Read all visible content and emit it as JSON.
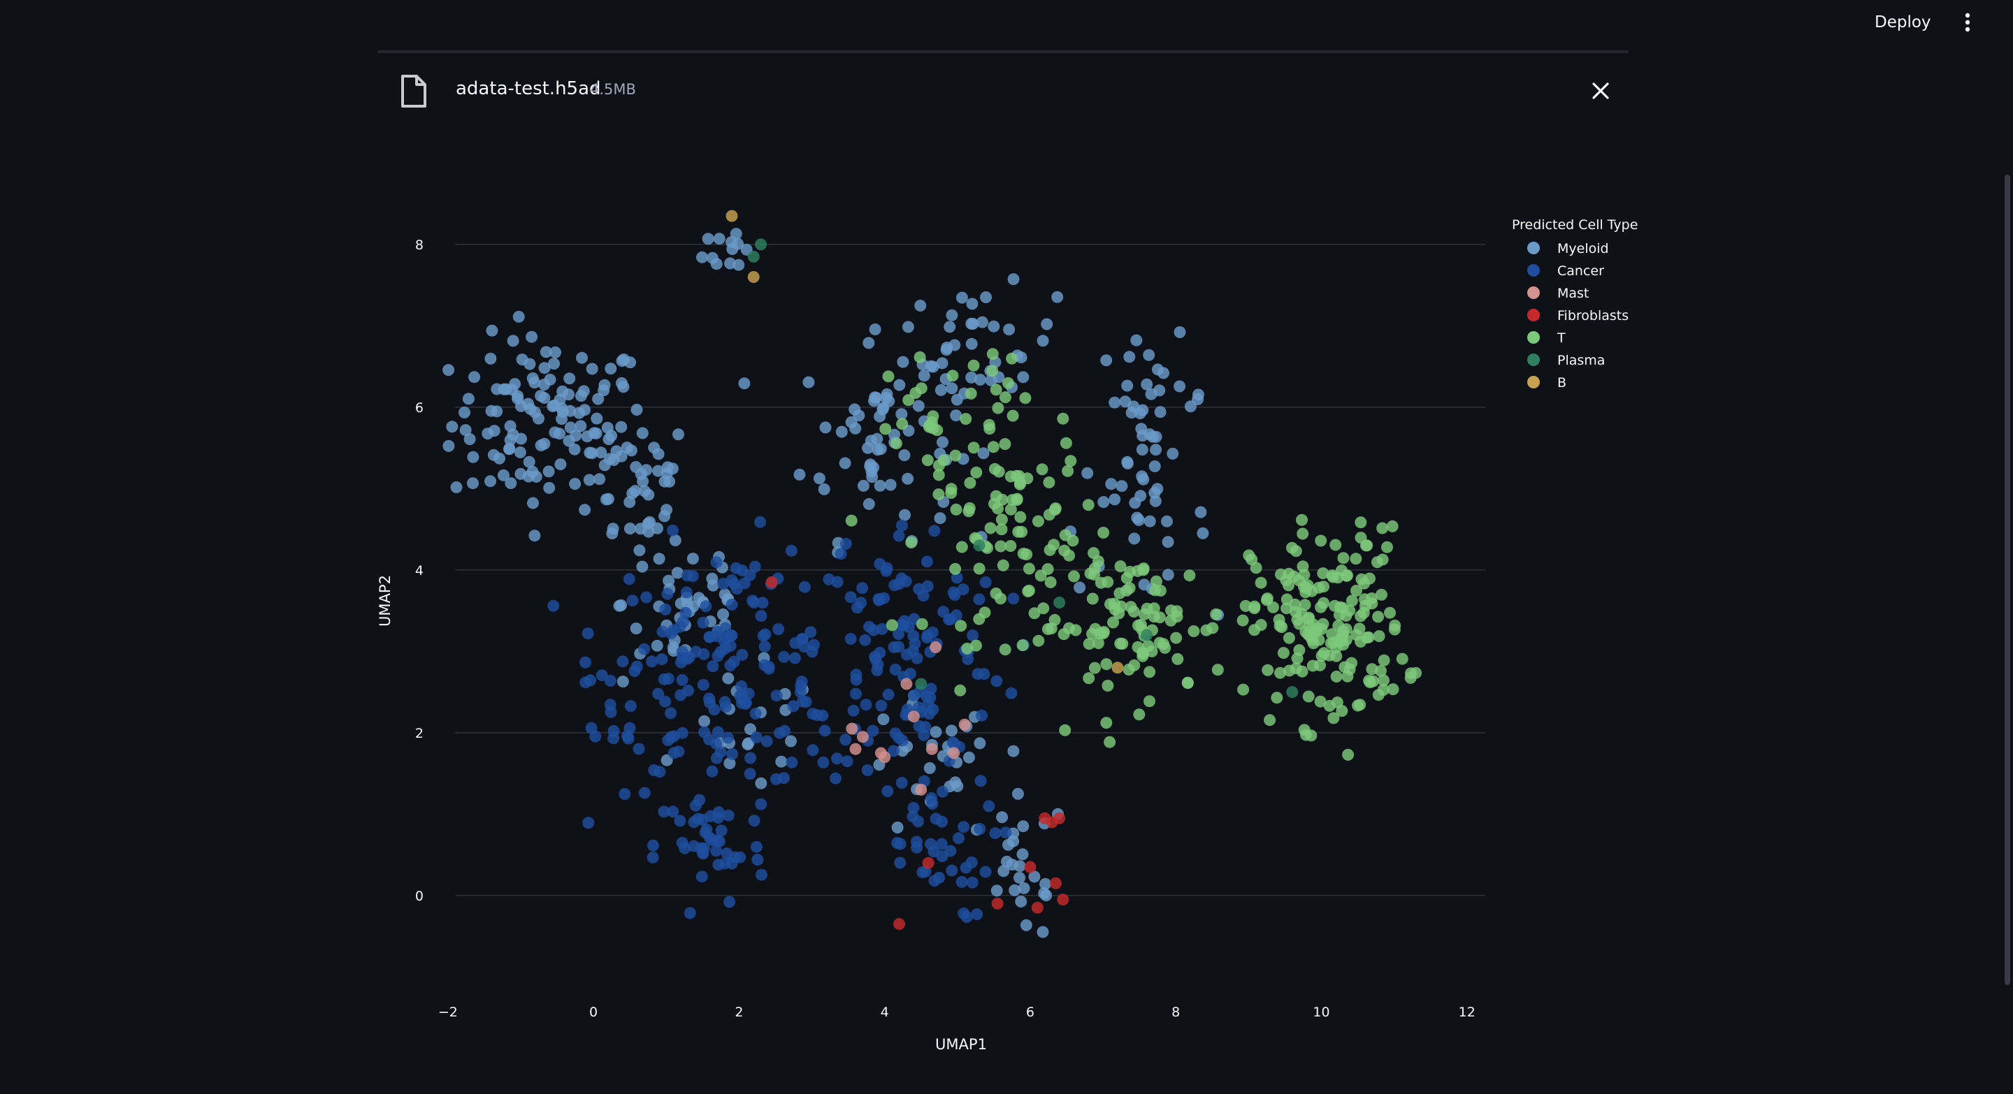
{
  "header": {
    "deploy_label": "Deploy",
    "menu_icon": "vertical-dots-icon"
  },
  "file": {
    "icon": "file-icon",
    "name": "adata-test.h5ad",
    "size": "4.5MB",
    "close_icon": "close-icon"
  },
  "chart_data": {
    "type": "scatter",
    "title": "",
    "xlabel": "UMAP1",
    "ylabel": "UMAP2",
    "xlim": [
      -2.2,
      12.3
    ],
    "ylim": [
      -1.1,
      8.6
    ],
    "xticks": [
      -2,
      0,
      2,
      4,
      6,
      8,
      10,
      12
    ],
    "xtick_labels": [
      "−2",
      "0",
      "2",
      "4",
      "6",
      "8",
      "10",
      "12"
    ],
    "yticks": [
      0,
      2,
      4,
      6,
      8
    ],
    "ytick_labels": [
      "0",
      "2",
      "4",
      "6",
      "8"
    ],
    "grid": "horizontal",
    "legend": {
      "title": "Predicted Cell Type",
      "placement": "top-right",
      "items": [
        {
          "name": "Myeloid",
          "color": "#6b9bc9"
        },
        {
          "name": "Cancer",
          "color": "#1f4e9e"
        },
        {
          "name": "Mast",
          "color": "#d4918f"
        },
        {
          "name": "Fibroblasts",
          "color": "#c62a2a"
        },
        {
          "name": "T",
          "color": "#7cc87a"
        },
        {
          "name": "Plasma",
          "color": "#2e8060"
        },
        {
          "name": "B",
          "color": "#c8a24e"
        }
      ]
    },
    "series": [
      {
        "name": "Myeloid",
        "clusters": [
          {
            "cx": -0.6,
            "cy": 5.8,
            "sx": 0.9,
            "sy": 0.7,
            "n": 120
          },
          {
            "cx": 0.6,
            "cy": 5.0,
            "sx": 0.5,
            "sy": 0.6,
            "n": 35
          },
          {
            "cx": 1.9,
            "cy": 8.0,
            "sx": 0.25,
            "sy": 0.25,
            "n": 12
          },
          {
            "cx": 3.9,
            "cy": 5.6,
            "sx": 0.7,
            "sy": 0.8,
            "n": 60
          },
          {
            "cx": 5.3,
            "cy": 6.7,
            "sx": 0.7,
            "sy": 0.5,
            "n": 40
          },
          {
            "cx": 7.7,
            "cy": 6.1,
            "sx": 0.5,
            "sy": 0.5,
            "n": 30
          },
          {
            "cx": 7.4,
            "cy": 4.6,
            "sx": 0.7,
            "sy": 0.6,
            "n": 30
          },
          {
            "cx": 1.3,
            "cy": 3.6,
            "sx": 0.6,
            "sy": 0.7,
            "n": 40
          },
          {
            "cx": 5.9,
            "cy": 0.3,
            "sx": 0.4,
            "sy": 0.6,
            "n": 25
          },
          {
            "cx": 4.6,
            "cy": 1.5,
            "sx": 0.6,
            "sy": 0.6,
            "n": 25
          },
          {
            "cx": 2.2,
            "cy": 2.0,
            "sx": 0.6,
            "sy": 0.5,
            "n": 20
          }
        ]
      },
      {
        "name": "Cancer",
        "clusters": [
          {
            "cx": 1.8,
            "cy": 2.8,
            "sx": 1.1,
            "sy": 1.0,
            "n": 150
          },
          {
            "cx": 1.6,
            "cy": 0.6,
            "sx": 0.5,
            "sy": 0.5,
            "n": 40
          },
          {
            "cx": 4.3,
            "cy": 3.0,
            "sx": 0.9,
            "sy": 1.1,
            "n": 120
          },
          {
            "cx": 4.6,
            "cy": 0.6,
            "sx": 0.6,
            "sy": 0.6,
            "n": 40
          },
          {
            "cx": 0.3,
            "cy": 2.5,
            "sx": 0.3,
            "sy": 0.5,
            "n": 15
          }
        ]
      },
      {
        "name": "Mast",
        "points": [
          [
            3.55,
            2.05
          ],
          [
            3.7,
            1.95
          ],
          [
            3.95,
            1.75
          ],
          [
            4.0,
            1.7
          ],
          [
            4.65,
            1.8
          ],
          [
            4.95,
            1.75
          ],
          [
            4.4,
            2.2
          ],
          [
            4.7,
            3.05
          ],
          [
            5.1,
            2.1
          ],
          [
            4.5,
            1.3
          ],
          [
            4.3,
            2.6
          ],
          [
            3.6,
            1.8
          ]
        ]
      },
      {
        "name": "Fibroblasts",
        "points": [
          [
            2.45,
            3.85
          ],
          [
            6.2,
            0.95
          ],
          [
            6.3,
            0.9
          ],
          [
            6.4,
            0.95
          ],
          [
            6.35,
            0.15
          ],
          [
            6.45,
            -0.05
          ],
          [
            6.0,
            0.35
          ],
          [
            6.1,
            -0.15
          ],
          [
            5.55,
            -0.1
          ],
          [
            4.2,
            -0.35
          ],
          [
            4.6,
            0.4
          ]
        ]
      },
      {
        "name": "T",
        "clusters": [
          {
            "cx": 10.1,
            "cy": 3.3,
            "sx": 0.7,
            "sy": 0.8,
            "n": 170
          },
          {
            "cx": 7.4,
            "cy": 3.3,
            "sx": 0.9,
            "sy": 0.6,
            "n": 90
          },
          {
            "cx": 5.8,
            "cy": 4.5,
            "sx": 0.8,
            "sy": 0.9,
            "n": 90
          },
          {
            "cx": 4.8,
            "cy": 6.0,
            "sx": 0.8,
            "sy": 0.6,
            "n": 30
          }
        ]
      },
      {
        "name": "Plasma",
        "points": [
          [
            2.3,
            8.0
          ],
          [
            4.5,
            2.6
          ],
          [
            5.3,
            4.3
          ],
          [
            7.6,
            3.2
          ],
          [
            2.2,
            7.85
          ],
          [
            6.4,
            3.6
          ],
          [
            9.6,
            2.5
          ]
        ]
      },
      {
        "name": "B",
        "points": [
          [
            1.9,
            8.35
          ],
          [
            2.2,
            7.6
          ],
          [
            7.2,
            2.8
          ]
        ]
      }
    ]
  }
}
